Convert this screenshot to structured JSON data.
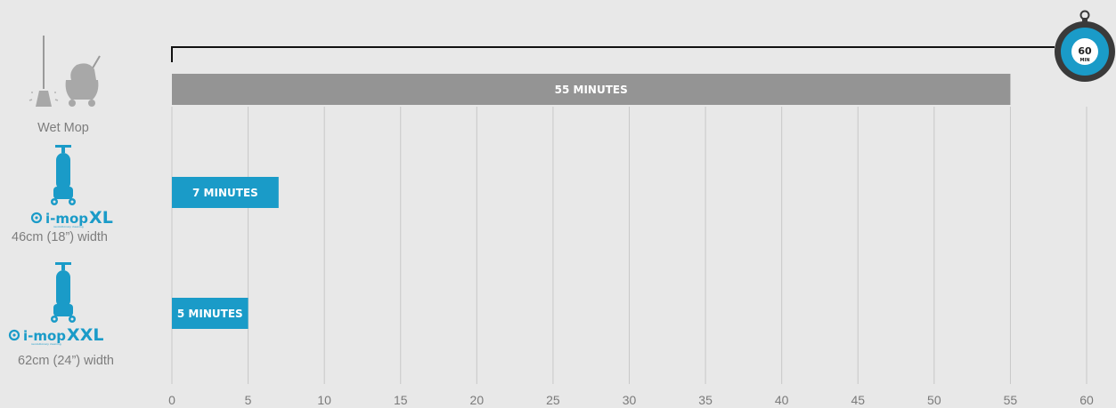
{
  "chart_data": {
    "type": "bar",
    "orientation": "horizontal",
    "categories": [
      "Wet Mop",
      "i-mopXL",
      "i-mopXXL"
    ],
    "category_captions": [
      "Wet Mop",
      "46cm (18”) width",
      "62cm (24”) width"
    ],
    "values": [
      55,
      7,
      5
    ],
    "bar_labels": [
      "55 MINUTES",
      "7 MINUTES",
      "5 MINUTES"
    ],
    "bar_colors": [
      "#949494",
      "#1a9bc8",
      "#1a9bc8"
    ],
    "xlim": [
      0,
      60
    ],
    "x_ticks": [
      "0",
      "5",
      "10",
      "15",
      "20",
      "25",
      "30",
      "35",
      "40",
      "45",
      "50",
      "55",
      "60"
    ],
    "grid": "vertical",
    "xlabel": "",
    "ylabel": "",
    "title": ""
  },
  "brands": {
    "xl": {
      "name": "i-mop",
      "suffix": "XL",
      "tagline": "revolutionary cleaning"
    },
    "xxl": {
      "name": "i-mop",
      "suffix": "XXL",
      "tagline": "revolutionary cleaning"
    }
  },
  "timer": {
    "value": "60",
    "unit": "MIN",
    "scale_max": 60
  },
  "icons": [
    "mop-icon",
    "mop-bucket-icon",
    "i-mop-xl-machine-icon",
    "i-mop-xxl-machine-icon",
    "stopwatch-icon"
  ],
  "colors": {
    "accent": "#1a9bc8",
    "gray_bar": "#949494",
    "background": "#e8e8e8",
    "grid": "#c8c8c8",
    "timer_dark": "#3a3a3a"
  }
}
